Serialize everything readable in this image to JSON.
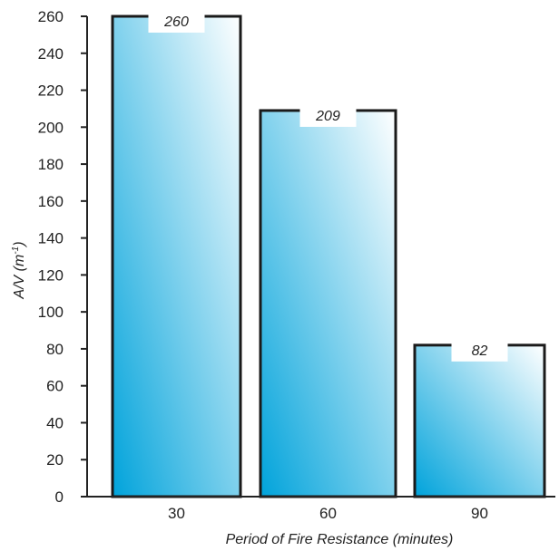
{
  "chart_data": {
    "type": "bar",
    "categories": [
      "30",
      "60",
      "90"
    ],
    "values": [
      260,
      209,
      82
    ],
    "data_labels": [
      "260",
      "209",
      "82"
    ],
    "title": "",
    "xlabel": "Period of Fire Resistance (minutes)",
    "ylabel": "A/V (m",
    "ylabel_superscript": "-1",
    "ylabel_suffix": ")",
    "ylim": [
      0,
      260
    ],
    "yticks": [
      "0",
      "20",
      "40",
      "60",
      "80",
      "100",
      "120",
      "140",
      "160",
      "180",
      "200",
      "220",
      "240",
      "260"
    ],
    "grid": false,
    "legend": "none",
    "colors": {
      "bar_light": "#ffffff",
      "bar_dark": "#00a3db",
      "outline": "#1a1a1a",
      "axis": "#222222"
    }
  }
}
